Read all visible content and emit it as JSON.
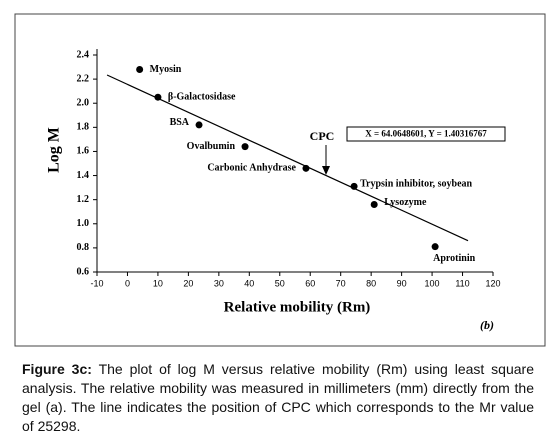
{
  "chart_data": {
    "type": "scatter",
    "xlabel": "Relative mobility (Rm)",
    "ylabel": "Log M",
    "panel_label": "(b)",
    "x": [
      4,
      10,
      23.5,
      38.6,
      58.6,
      74.4,
      81,
      101
    ],
    "values": [
      2.28,
      2.05,
      1.82,
      1.64,
      1.46,
      1.31,
      1.16,
      0.81
    ],
    "point_labels": [
      "Myosin",
      "β-Galactosidase",
      "BSA",
      "Ovalbumin",
      "Carbonic Anhydrase",
      "Trypsin inhibitor, soybean",
      "Lysozyme",
      "Aprotinin"
    ],
    "color": "#000000",
    "fit_line": {
      "x": [
        -6.7,
        111.8
      ],
      "y": [
        2.234,
        0.86
      ]
    },
    "annotations": [
      "CPC",
      "X = 64.0648601, Y = 1.40316767"
    ],
    "xlim": [
      -10,
      120
    ],
    "xticks": [
      -10,
      0,
      10,
      20,
      30,
      40,
      50,
      60,
      70,
      80,
      90,
      100,
      110,
      120
    ],
    "ylim": [
      0.6,
      2.4
    ],
    "yticks": [
      0.6,
      0.8,
      {
        "value": 1,
        "label": "1.0"
      },
      1.2,
      1.4,
      1.6,
      1.8,
      {
        "value": 2,
        "label": "2.0"
      },
      2.2,
      2.4
    ]
  },
  "caption": {
    "label": "Figure 3c:",
    "text": "The plot of log M versus relative mobility (Rm) using least square analysis. The relative mobility was measured in millimeters (mm) directly from the gel (a). The line indicates the position of CPC which corresponds to the Mr value of 25298."
  }
}
